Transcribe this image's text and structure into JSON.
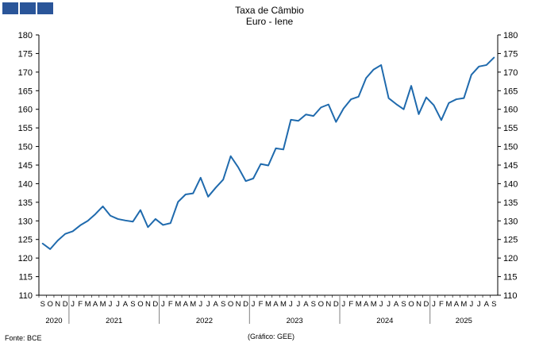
{
  "header": {
    "title": "Taxa de Câmbio",
    "subtitle": "Euro - Iene"
  },
  "footer": {
    "source": "Fonte: BCE",
    "credit": "(Gráfico: GEE)"
  },
  "colors": {
    "line": "#1f6aad",
    "logo": "#2a5599",
    "axis": "#000000",
    "grid": "#808080"
  },
  "chart_data": {
    "type": "line",
    "title": "Taxa de Câmbio",
    "subtitle": "Euro - Iene",
    "ylim": [
      110,
      180
    ],
    "yticks": [
      110,
      115,
      120,
      125,
      130,
      135,
      140,
      145,
      150,
      155,
      160,
      165,
      170,
      175,
      180
    ],
    "y_axis_both_sides": true,
    "grid": false,
    "x_months": [
      "S",
      "O",
      "N",
      "D",
      "J",
      "F",
      "M",
      "A",
      "M",
      "J",
      "J",
      "A",
      "S",
      "O",
      "N",
      "D",
      "J",
      "F",
      "M",
      "A",
      "M",
      "J",
      "J",
      "A",
      "S",
      "O",
      "N",
      "D",
      "J",
      "F",
      "M",
      "A",
      "M",
      "J",
      "J",
      "A",
      "S",
      "O",
      "N",
      "D",
      "J",
      "F",
      "M",
      "A",
      "M",
      "J",
      "J",
      "A",
      "S",
      "O",
      "N",
      "D",
      "J",
      "F",
      "M",
      "A",
      "M",
      "J",
      "J",
      "A",
      "S"
    ],
    "years": [
      {
        "label": "2020",
        "months": 4
      },
      {
        "label": "2021",
        "months": 12
      },
      {
        "label": "2022",
        "months": 12
      },
      {
        "label": "2023",
        "months": 12
      },
      {
        "label": "2024",
        "months": 12
      },
      {
        "label": "2025",
        "months": 9
      }
    ],
    "series": [
      {
        "values": [
          123.9,
          122.4,
          124.7,
          126.5,
          127.2,
          128.8,
          130.0,
          131.8,
          133.9,
          131.4,
          130.5,
          130.1,
          129.8,
          132.9,
          128.3,
          130.5,
          128.9,
          129.4,
          135.1,
          137.1,
          137.4,
          141.6,
          136.5,
          138.9,
          141.1,
          147.4,
          144.4,
          140.7,
          141.4,
          145.3,
          144.9,
          149.5,
          149.2,
          157.2,
          156.9,
          158.6,
          158.2,
          160.5,
          161.3,
          156.6,
          160.2,
          162.7,
          163.4,
          168.4,
          170.7,
          171.9,
          163.0,
          161.4,
          160.0,
          166.3,
          158.7,
          163.2,
          161.1,
          157.1,
          161.7,
          162.7,
          163.0,
          169.3,
          171.5,
          171.9,
          173.9
        ]
      }
    ]
  }
}
